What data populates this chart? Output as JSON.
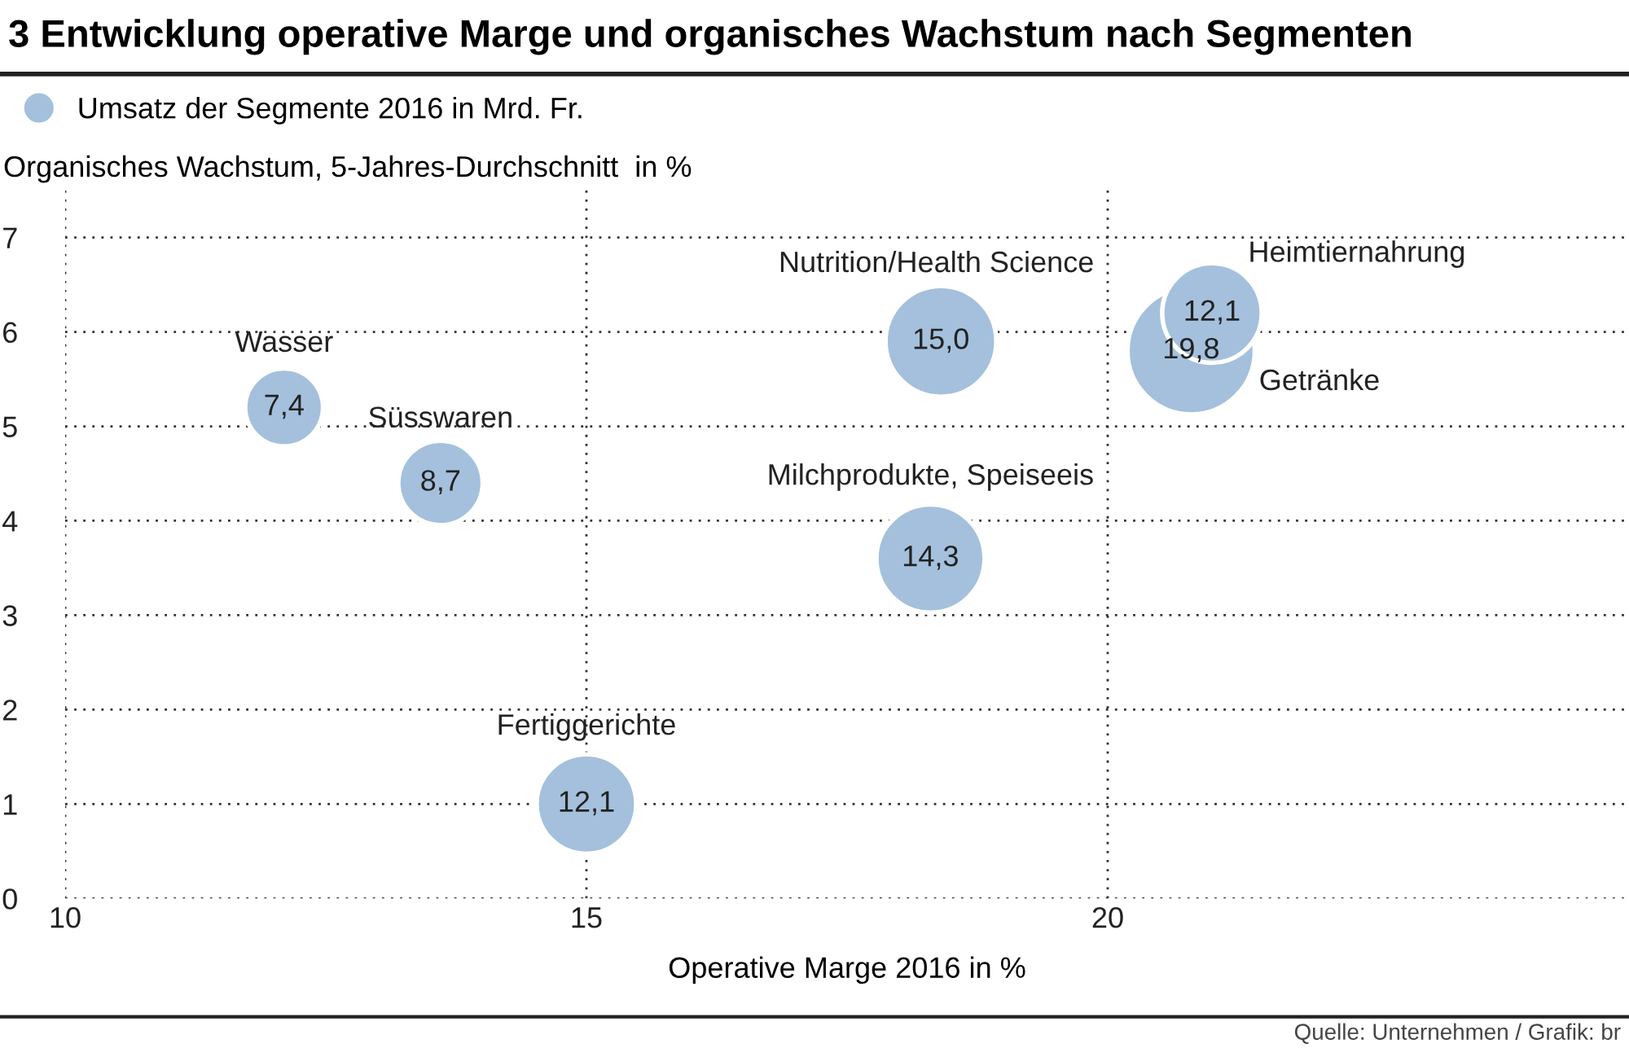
{
  "chart_data": {
    "type": "bubble",
    "title": "3 Entwicklung operative Marge und organisches Wachstum nach Segmenten",
    "xlabel": "Operative Marge 2016 in %",
    "ylabel": "Organisches Wachstum, 5-Jahres-Durchschnitt  in %",
    "x": [
      12.1,
      13.6,
      18.4,
      18.3,
      15.0,
      20.8,
      21.0
    ],
    "series": [
      {
        "name": "Umsatz der Segmente 2016 in Mrd. Fr.",
        "color": "#a4c0dc",
        "values": [
          5.2,
          4.4,
          5.9,
          3.6,
          1.0,
          5.8,
          6.2
        ],
        "sizes": [
          7.4,
          8.7,
          15.0,
          14.3,
          12.1,
          19.8,
          12.1
        ],
        "value_labels": [
          "7,4",
          "8,7",
          "15,0",
          "14,3",
          "12,1",
          "19,8",
          "12,1"
        ]
      }
    ],
    "annotations": [
      {
        "text": "Wasser",
        "x": 12.1,
        "y": 5.2
      },
      {
        "text": "Süsswaren",
        "x": 13.6,
        "y": 4.4
      },
      {
        "text": "Nutrition/Health Science",
        "x": 18.4,
        "y": 5.9
      },
      {
        "text": "Milchprodukte, Speiseeis",
        "x": 18.3,
        "y": 3.6
      },
      {
        "text": "Fertiggerichte",
        "x": 15.0,
        "y": 1.0
      },
      {
        "text": "Getränke",
        "x": 20.8,
        "y": 5.8
      },
      {
        "text": "Heimtiernahrung",
        "x": 21.0,
        "y": 6.2
      },
      "Quelle: Unternehmen / Grafik: br"
    ],
    "xlim": [
      10,
      25
    ],
    "ylim": [
      0,
      7.5
    ],
    "xticks": [
      10,
      15,
      20
    ],
    "yticks": [
      0,
      1,
      2,
      3,
      4,
      5,
      6,
      7
    ],
    "grid": true,
    "legend": "top left"
  }
}
